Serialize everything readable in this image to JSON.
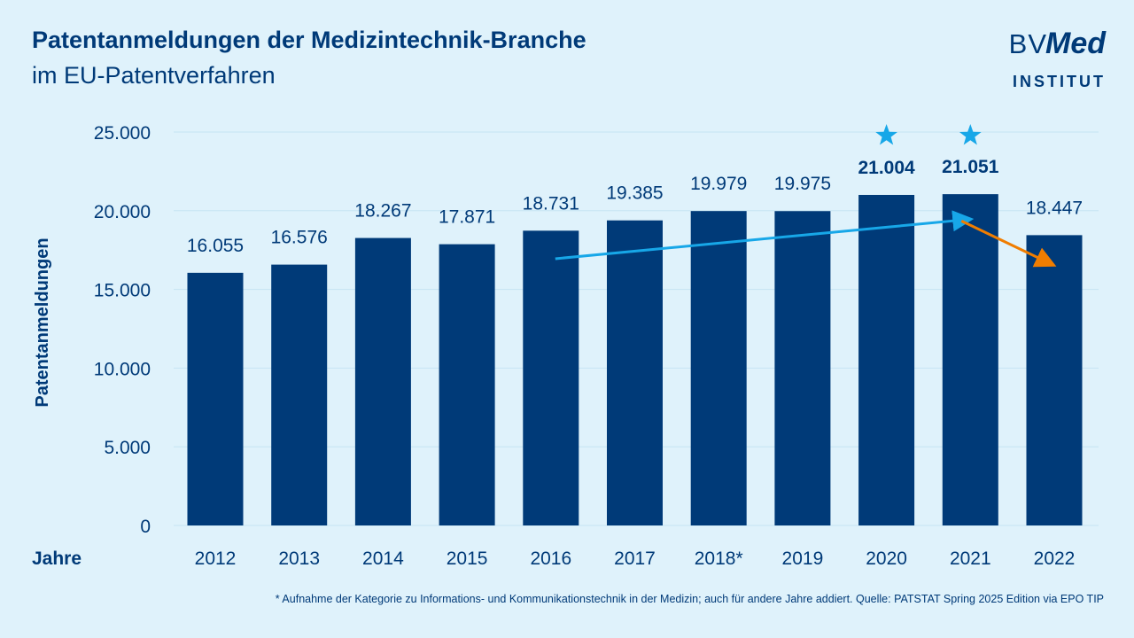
{
  "header": {
    "title": "Patentanmeldungen der Medizintechnik-Branche",
    "subtitle": "im EU-Patentverfahren"
  },
  "logo": {
    "bv": "BV",
    "med": "Med",
    "sub": "INSTITUT"
  },
  "footnote": "* Aufnahme der Kategorie zu Informations- und Kommunikationstechnik in der Medizin; auch für andere Jahre addiert. Quelle: PATSTAT Spring 2025 Edition via EPO TIP",
  "colors": {
    "bar": "#003a78",
    "text": "#003a78",
    "background": "#dff2fb",
    "grid": "#c6e4f3",
    "trend_up": "#17a7e8",
    "trend_down": "#f07d00",
    "star": "#17a7e8"
  },
  "chart_data": {
    "type": "bar",
    "xlabel": "Jahre",
    "ylabel": "Patentanmeldungen",
    "ylim": [
      0,
      25000
    ],
    "yticks": [
      0,
      5000,
      10000,
      15000,
      20000,
      25000
    ],
    "ytick_labels": [
      "0",
      "5.000",
      "10.000",
      "15.000",
      "20.000",
      "25.000"
    ],
    "grid": true,
    "categories": [
      "2012",
      "2013",
      "2014",
      "2015",
      "2016",
      "2017",
      "2018*",
      "2019",
      "2020",
      "2021",
      "2022"
    ],
    "values": [
      16055,
      16576,
      18267,
      17871,
      18731,
      19385,
      19979,
      19975,
      21004,
      21051,
      18447
    ],
    "value_labels": [
      "16.055",
      "16.576",
      "18.267",
      "17.871",
      "18.731",
      "19.385",
      "19.979",
      "19.975",
      "21.004",
      "21.051",
      "18.447"
    ],
    "highlighted": [
      "2020",
      "2021"
    ],
    "annotations": [
      {
        "type": "arrow",
        "color": "blue",
        "from": {
          "x": "2016",
          "y": 16950
        },
        "to": {
          "x": "2021",
          "y": 19450
        }
      },
      {
        "type": "arrow",
        "color": "orange",
        "from": {
          "x": "2021",
          "y": 19350
        },
        "to": {
          "x": "2022",
          "y": 16600
        }
      },
      {
        "type": "star",
        "x": "2020"
      },
      {
        "type": "star",
        "x": "2021"
      }
    ]
  }
}
